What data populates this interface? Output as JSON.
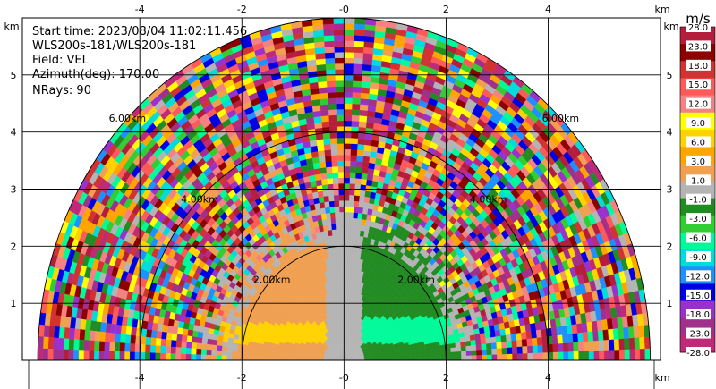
{
  "chart_data": {
    "type": "heatmap",
    "subtype": "radar-ppi-sector",
    "info_lines": [
      "Start time: 2023/08/04 11:02:11.456",
      "WLS200s-181/WLS200s-181",
      "Field: VEL",
      "Azimuth(deg): 170.00",
      "NRays: 90"
    ],
    "x_unit": "km",
    "y_unit": "km",
    "xlim": [
      -6.3,
      6.2
    ],
    "ylim": [
      0,
      6
    ],
    "x_ticks": [
      "-4",
      "-2",
      "-0",
      "2",
      "4"
    ],
    "x_tick_values": [
      -4,
      -2,
      0,
      2,
      4
    ],
    "y_ticks": [
      "1",
      "2",
      "3",
      "4",
      "5"
    ],
    "y_tick_values": [
      1,
      2,
      3,
      4,
      5
    ],
    "range_rings_km": [
      2,
      4,
      6
    ],
    "range_ring_labels": [
      "2.00km",
      "4.00km",
      "6.00km"
    ],
    "grid": true,
    "max_range_km": 6,
    "colorbar": {
      "unit": "m/s",
      "tick_labels": [
        "28.0",
        "23.0",
        "18.0",
        "15.0",
        "12.0",
        "9.0",
        "6.0",
        "3.0",
        "1.0",
        "-1.0",
        "-3.0",
        "-6.0",
        "-9.0",
        "-12.0",
        "-15.0",
        "-18.0",
        "-23.0",
        "-28.0"
      ],
      "colors": [
        "#b41e3c",
        "#8c0000",
        "#d23232",
        "#ff5a5a",
        "#f48282",
        "#ffff00",
        "#ffd200",
        "#ffa500",
        "#f0a050",
        "#b4b4b4",
        "#228b22",
        "#32cd32",
        "#00fa9a",
        "#00dcdc",
        "#1e90ff",
        "#0000e6",
        "#9932cc",
        "#a0308c",
        "#be2a78"
      ]
    },
    "near_field": [
      {
        "side": "left",
        "value_mps": 1.5,
        "color": "#f0a050"
      },
      {
        "side": "left-low",
        "value_mps": 6.0,
        "color": "#ffd200"
      },
      {
        "side": "center",
        "value_mps": 0.0,
        "color": "#b4b4b4"
      },
      {
        "side": "right",
        "value_mps": -2.0,
        "color": "#228b22"
      },
      {
        "side": "right-low",
        "value_mps": -7.0,
        "color": "#00fa9a"
      }
    ]
  }
}
